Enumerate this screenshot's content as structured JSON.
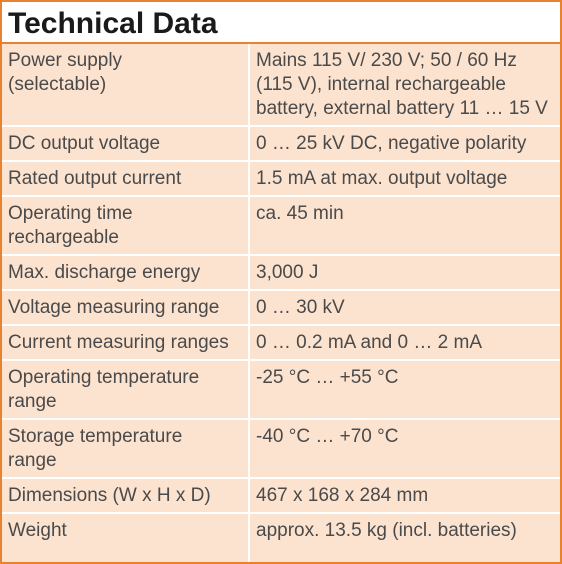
{
  "header": {
    "title": "Technical Data"
  },
  "table": {
    "rows": [
      [
        [
          "Power supply",
          "(selectable)"
        ],
        [
          "Mains 115 V/ 230 V; 50 / 60 Hz",
          "(115 V), internal rechargeable",
          "battery, external battery 11 … 15 V"
        ]
      ],
      [
        [
          "DC output voltage"
        ],
        [
          "0 … 25 kV DC, negative polarity"
        ]
      ],
      [
        [
          "Rated output current"
        ],
        [
          "1.5 mA at max. output voltage"
        ]
      ],
      [
        [
          "Operating time",
          "rechargeable"
        ],
        [
          "ca. 45 min"
        ]
      ],
      [
        [
          "Max. discharge energy"
        ],
        [
          "3,000 J"
        ]
      ],
      [
        [
          "Voltage measuring range"
        ],
        [
          "0 … 30 kV"
        ]
      ],
      [
        [
          "Current measuring ranges"
        ],
        [
          "0 … 0.2 mA and 0 … 2 mA"
        ]
      ],
      [
        [
          "Operating temperature",
          "range"
        ],
        [
          "-25 °C … +55 °C"
        ]
      ],
      [
        [
          "Storage temperature",
          "range"
        ],
        [
          "-40 °C … +70 °C"
        ]
      ],
      [
        [
          "Dimensions (W x H x D)"
        ],
        [
          "467 x 168 x 284 mm"
        ]
      ],
      [
        [
          "Weight"
        ],
        [
          "approx. 13.5 kg (incl. batteries)"
        ]
      ]
    ]
  }
}
